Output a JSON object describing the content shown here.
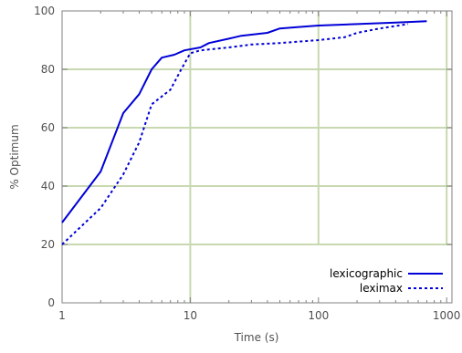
{
  "chart_data": {
    "type": "line",
    "xscale": "log",
    "xlabel": "Time (s)",
    "ylabel": "% Optimum",
    "xlim": [
      1,
      1100
    ],
    "ylim": [
      0,
      100
    ],
    "xticks": [
      {
        "value": 1,
        "label": "1"
      },
      {
        "value": 10,
        "label": "10"
      },
      {
        "value": 100,
        "label": "100"
      },
      {
        "value": 1000,
        "label": "1000"
      }
    ],
    "yticks": [
      {
        "value": 0,
        "label": "0"
      },
      {
        "value": 20,
        "label": "20"
      },
      {
        "value": 40,
        "label": "40"
      },
      {
        "value": 60,
        "label": "60"
      },
      {
        "value": 80,
        "label": "80"
      },
      {
        "value": 100,
        "label": "100"
      }
    ],
    "grid": true,
    "grid_color": "#c8d8b0",
    "legend_position": "bottom-right",
    "series": [
      {
        "name": "lexicographic",
        "style": "solid",
        "color": "#0000d8",
        "points": [
          [
            1,
            27.5
          ],
          [
            2,
            45
          ],
          [
            3,
            65
          ],
          [
            4,
            71.5
          ],
          [
            5,
            80
          ],
          [
            6,
            84
          ],
          [
            7.5,
            85
          ],
          [
            9,
            86.5
          ],
          [
            12,
            87.5
          ],
          [
            14,
            89
          ],
          [
            20,
            90.5
          ],
          [
            25,
            91.5
          ],
          [
            40,
            92.5
          ],
          [
            50,
            94
          ],
          [
            70,
            94.5
          ],
          [
            100,
            95
          ],
          [
            200,
            95.5
          ],
          [
            400,
            96
          ],
          [
            700,
            96.5
          ]
        ]
      },
      {
        "name": "leximax",
        "style": "dotted",
        "color": "#0000d8",
        "points": [
          [
            1,
            20
          ],
          [
            2,
            32.5
          ],
          [
            3,
            44
          ],
          [
            4,
            55
          ],
          [
            5,
            68
          ],
          [
            7,
            73
          ],
          [
            8.5,
            80
          ],
          [
            10,
            85.5
          ],
          [
            12,
            86.5
          ],
          [
            20,
            87.5
          ],
          [
            30,
            88.5
          ],
          [
            50,
            89
          ],
          [
            100,
            90
          ],
          [
            160,
            91
          ],
          [
            200,
            92.5
          ],
          [
            300,
            94
          ],
          [
            500,
            95.5
          ]
        ]
      }
    ]
  }
}
